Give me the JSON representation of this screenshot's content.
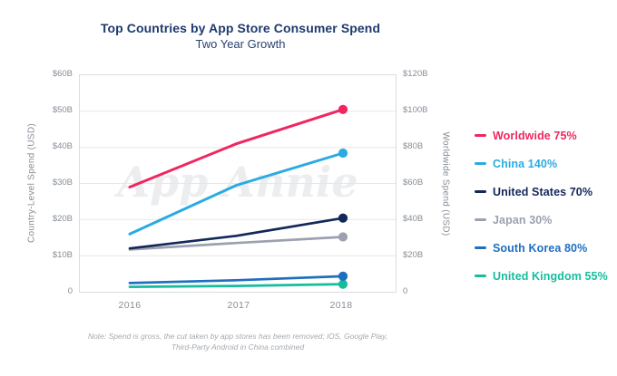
{
  "header": {
    "title": "Top Countries by App Store Consumer Spend",
    "subtitle": "Two Year Growth"
  },
  "watermark": "App Annie",
  "note_lines": [
    "Note: Spend is gross, the cut taken by app stores has been removed; iOS, Google Play,",
    "Third-Party Android in China combined"
  ],
  "colors": {
    "title_navy": "#1E3A6E",
    "axis_text_gray": "#878E96",
    "gridline": "#E7E7E7",
    "plot_border": "#DADCDE",
    "note_gray": "#A6A9AD"
  },
  "chart_data": {
    "type": "line",
    "title": "Top Countries by App Store Consumer Spend",
    "subtitle": "Two Year Growth",
    "x": [
      "2016",
      "2017",
      "2018"
    ],
    "ylabel_left": "Country-Level Spend (USD)",
    "ylabel_right": "Worldwide Spend (USD)",
    "ylim_left_billion_usd": [
      0,
      60
    ],
    "ylim_right_billion_usd": [
      0,
      120
    ],
    "left_ticks": [
      "$60B",
      "$50B",
      "$40B",
      "$30B",
      "$20B",
      "$10B",
      "0"
    ],
    "right_ticks": [
      "$120B",
      "$100B",
      "$80B",
      "$60B",
      "$40B",
      "$20B",
      "0"
    ],
    "grid": true,
    "legend_position": "right",
    "marker": "dot-on-last-point",
    "series": [
      {
        "name": "Worldwide",
        "growth": "75%",
        "axis": "right",
        "color": "#F0265F",
        "values_usd_billion": [
          58,
          82,
          101
        ]
      },
      {
        "name": "China",
        "growth": "140%",
        "axis": "left",
        "color": "#29ABE2",
        "values_usd_billion": [
          16,
          29.5,
          38.4
        ]
      },
      {
        "name": "United States",
        "growth": "70%",
        "axis": "left",
        "color": "#12275A",
        "values_usd_billion": [
          12,
          15.5,
          20.4
        ]
      },
      {
        "name": "Japan",
        "growth": "30%",
        "axis": "left",
        "color": "#9BA1AF",
        "values_usd_billion": [
          11.7,
          13.5,
          15.2
        ]
      },
      {
        "name": "South Korea",
        "growth": "80%",
        "axis": "left",
        "color": "#1E6FC0",
        "values_usd_billion": [
          2.4,
          3.2,
          4.3
        ]
      },
      {
        "name": "United Kingdom",
        "growth": "55%",
        "axis": "left",
        "color": "#16BD9D",
        "values_usd_billion": [
          1.35,
          1.6,
          2.1
        ]
      }
    ]
  }
}
